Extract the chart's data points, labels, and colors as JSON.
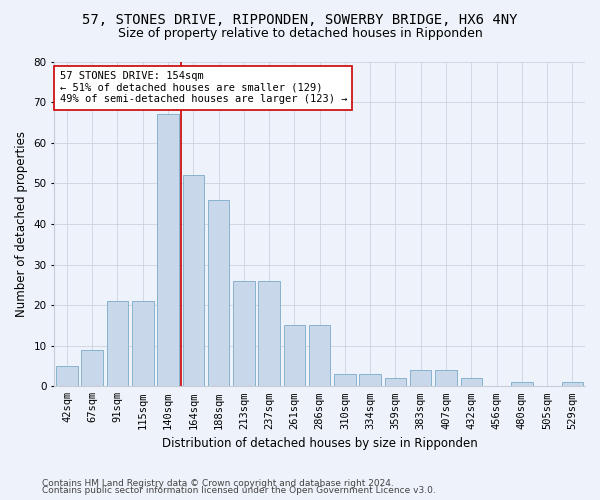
{
  "title": "57, STONES DRIVE, RIPPONDEN, SOWERBY BRIDGE, HX6 4NY",
  "subtitle": "Size of property relative to detached houses in Ripponden",
  "xlabel": "Distribution of detached houses by size in Ripponden",
  "ylabel": "Number of detached properties",
  "bar_color": "#c8d8ea",
  "bar_edge_color": "#7aaac8",
  "grid_color": "#c8ccd8",
  "background_color": "#eef2fa",
  "annotation_box_color": "#ffffff",
  "annotation_border_color": "#cc0000",
  "vline_color": "#cc0000",
  "categories": [
    "42sqm",
    "67sqm",
    "91sqm",
    "115sqm",
    "140sqm",
    "164sqm",
    "188sqm",
    "213sqm",
    "237sqm",
    "261sqm",
    "286sqm",
    "310sqm",
    "334sqm",
    "359sqm",
    "383sqm",
    "407sqm",
    "432sqm",
    "456sqm",
    "480sqm",
    "505sqm",
    "529sqm"
  ],
  "values": [
    5,
    9,
    21,
    21,
    67,
    52,
    46,
    26,
    26,
    15,
    15,
    3,
    3,
    2,
    4,
    4,
    2,
    0,
    1,
    0,
    1
  ],
  "ylim": [
    0,
    80
  ],
  "yticks": [
    0,
    10,
    20,
    30,
    40,
    50,
    60,
    70,
    80
  ],
  "vline_x": 4.5,
  "annotation_text": "57 STONES DRIVE: 154sqm\n← 51% of detached houses are smaller (129)\n49% of semi-detached houses are larger (123) →",
  "footnote1": "Contains HM Land Registry data © Crown copyright and database right 2024.",
  "footnote2": "Contains public sector information licensed under the Open Government Licence v3.0.",
  "title_fontsize": 10,
  "subtitle_fontsize": 9,
  "xlabel_fontsize": 8.5,
  "ylabel_fontsize": 8.5,
  "tick_fontsize": 7.5,
  "annotation_fontsize": 7.5,
  "footnote_fontsize": 6.5
}
